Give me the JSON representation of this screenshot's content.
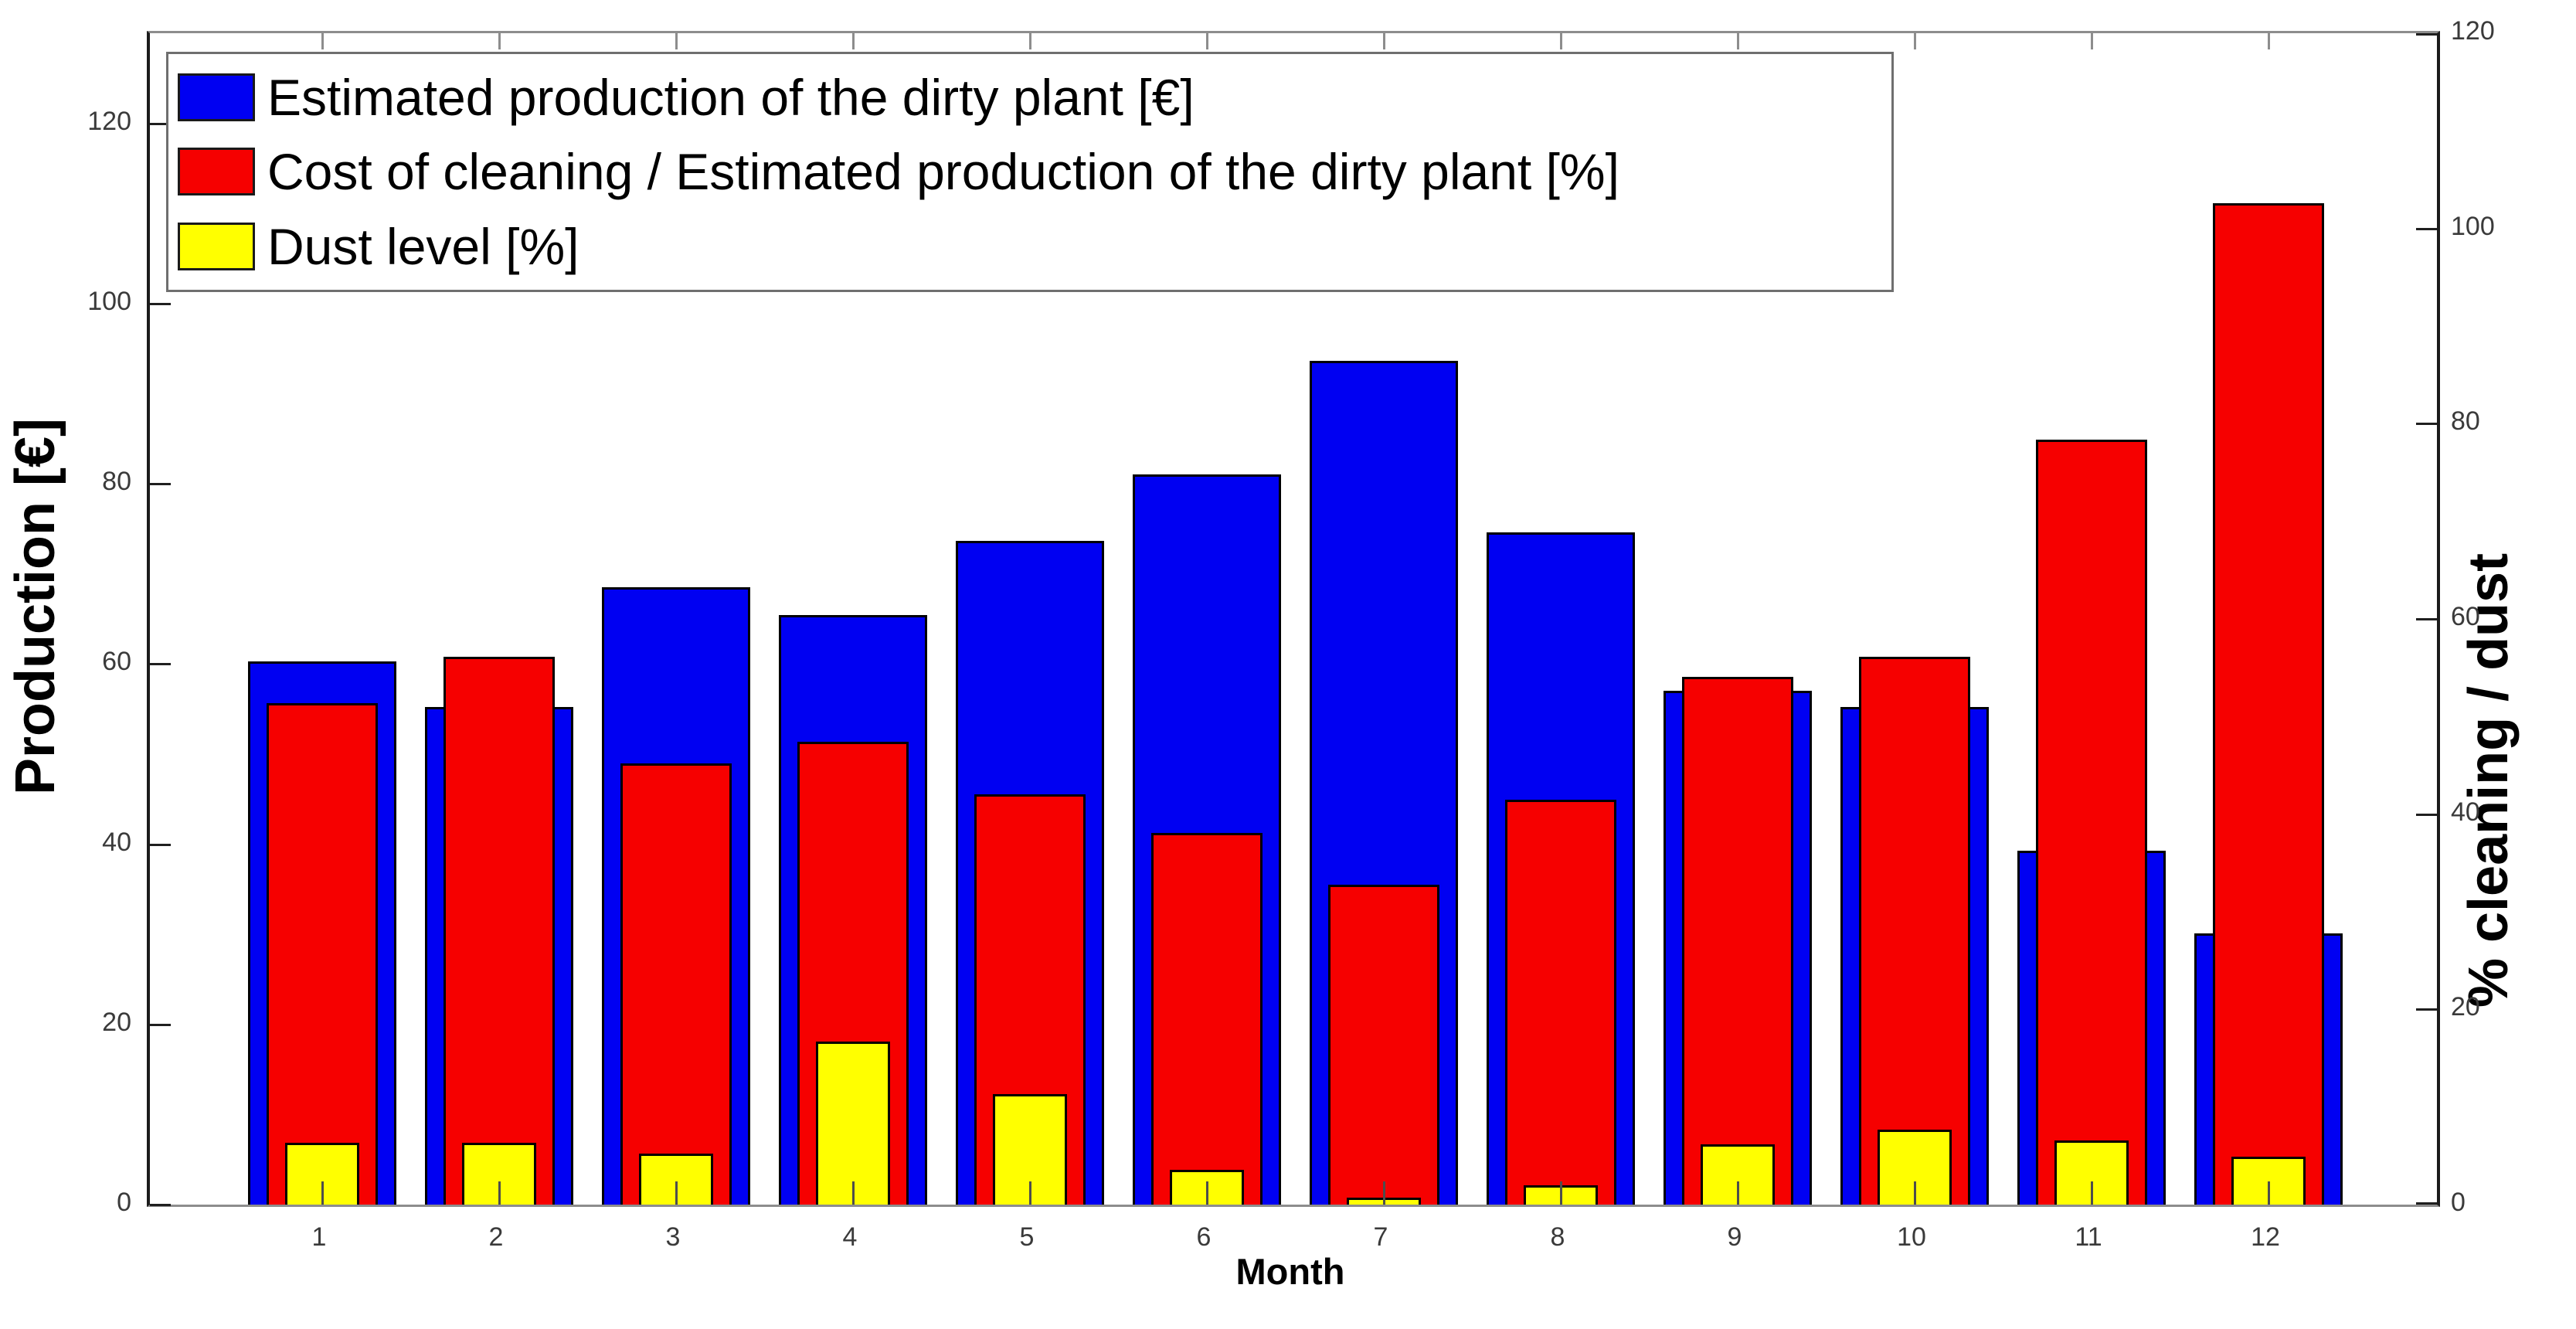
{
  "chart_data": {
    "type": "bar",
    "title": "",
    "xlabel": "Month",
    "ylabel_left": "Production [€]",
    "ylabel_right": "% cleaning / dust",
    "categories": [
      "1",
      "2",
      "3",
      "4",
      "5",
      "6",
      "7",
      "8",
      "9",
      "10",
      "11",
      "12"
    ],
    "series": [
      {
        "name": "Estimated production of the dirty plant [€]",
        "axis": "left",
        "color": "#0000f2",
        "width_frac": 0.8,
        "values": [
          60.3,
          55.2,
          68.5,
          65.4,
          73.7,
          81.0,
          93.6,
          74.6,
          57.0,
          55.2,
          39.3,
          30.1
        ]
      },
      {
        "name": "Cost of cleaning / Estimated production of the dirty plant [%]",
        "axis": "right",
        "color": "#f60000",
        "width_frac": 0.6,
        "values": [
          51.4,
          56.1,
          45.2,
          47.4,
          42.0,
          38.1,
          32.8,
          41.5,
          54.1,
          56.1,
          78.4,
          102.6
        ]
      },
      {
        "name": "Dust level [%]",
        "axis": "right",
        "color": "#ffff00",
        "width_frac": 0.4,
        "values": [
          6.3,
          6.3,
          5.2,
          16.7,
          11.3,
          3.6,
          0.7,
          2.0,
          6.2,
          7.7,
          6.6,
          4.9
        ]
      }
    ],
    "ylim_left": [
      0,
      130
    ],
    "ylim_right": [
      0,
      120
    ],
    "yticks_left": [
      "0",
      "20",
      "40",
      "60",
      "80",
      "100",
      "120"
    ],
    "ytick_values_left": [
      0,
      20,
      40,
      60,
      80,
      100,
      120
    ],
    "yticks_right": [
      "0",
      "20",
      "40",
      "60",
      "80",
      "100",
      "120"
    ],
    "ytick_values_right": [
      0,
      20,
      40,
      60,
      80,
      100,
      120
    ],
    "legend_position": "top-left",
    "grid": false
  }
}
